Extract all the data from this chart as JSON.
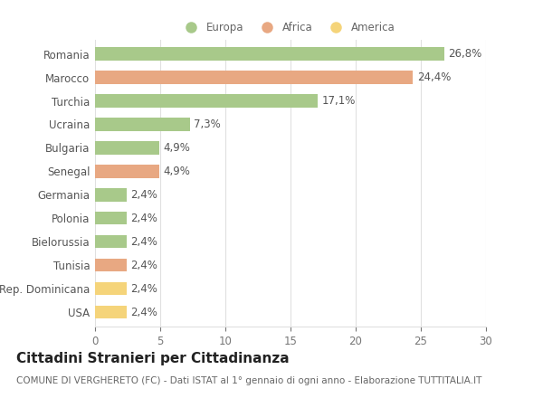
{
  "categories": [
    "Romania",
    "Marocco",
    "Turchia",
    "Ucraina",
    "Bulgaria",
    "Senegal",
    "Germania",
    "Polonia",
    "Bielorussia",
    "Tunisia",
    "Rep. Dominicana",
    "USA"
  ],
  "values": [
    26.8,
    24.4,
    17.1,
    7.3,
    4.9,
    4.9,
    2.4,
    2.4,
    2.4,
    2.4,
    2.4,
    2.4
  ],
  "labels": [
    "26,8%",
    "24,4%",
    "17,1%",
    "7,3%",
    "4,9%",
    "4,9%",
    "2,4%",
    "2,4%",
    "2,4%",
    "2,4%",
    "2,4%",
    "2,4%"
  ],
  "continent": [
    "Europa",
    "Africa",
    "Europa",
    "Europa",
    "Europa",
    "Africa",
    "Europa",
    "Europa",
    "Europa",
    "Africa",
    "America",
    "America"
  ],
  "colors": {
    "Europa": "#a8c98a",
    "Africa": "#e8a882",
    "America": "#f5d47a"
  },
  "legend_labels": [
    "Europa",
    "Africa",
    "America"
  ],
  "legend_colors": [
    "#a8c98a",
    "#e8a882",
    "#f5d47a"
  ],
  "title": "Cittadini Stranieri per Cittadinanza",
  "subtitle": "COMUNE DI VERGHERETO (FC) - Dati ISTAT al 1° gennaio di ogni anno - Elaborazione TUTTITALIA.IT",
  "xlim": [
    0,
    30
  ],
  "xticks": [
    0,
    5,
    10,
    15,
    20,
    25,
    30
  ],
  "background_color": "#ffffff",
  "grid_color": "#e0e0e0",
  "bar_height": 0.55,
  "label_fontsize": 8.5,
  "tick_fontsize": 8.5,
  "title_fontsize": 11,
  "subtitle_fontsize": 7.5
}
